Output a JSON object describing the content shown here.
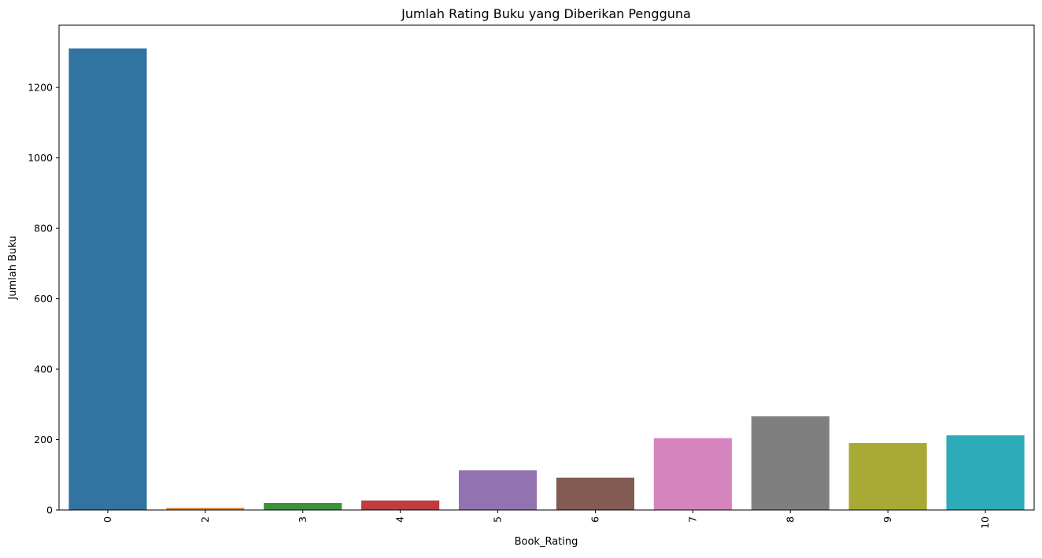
{
  "chart_data": {
    "type": "bar",
    "title": "Jumlah Rating Buku yang Diberikan Pengguna",
    "xlabel": "Book_Rating",
    "ylabel": "Jumlah Buku",
    "categories": [
      "0",
      "2",
      "3",
      "4",
      "5",
      "6",
      "7",
      "8",
      "9",
      "10"
    ],
    "values": [
      1311,
      6,
      20,
      27,
      113,
      92,
      204,
      266,
      190,
      212
    ],
    "colors": [
      "#3274a1",
      "#e1812c",
      "#3a923a",
      "#c03d3e",
      "#9372b2",
      "#845b53",
      "#d684bd",
      "#7f7f7f",
      "#a9aa35",
      "#2eabb8"
    ],
    "yticks": [
      0,
      200,
      400,
      600,
      800,
      1000,
      1200
    ],
    "ylim": [
      0,
      1377
    ],
    "grid": false,
    "x_tick_rotation": "vertical"
  }
}
